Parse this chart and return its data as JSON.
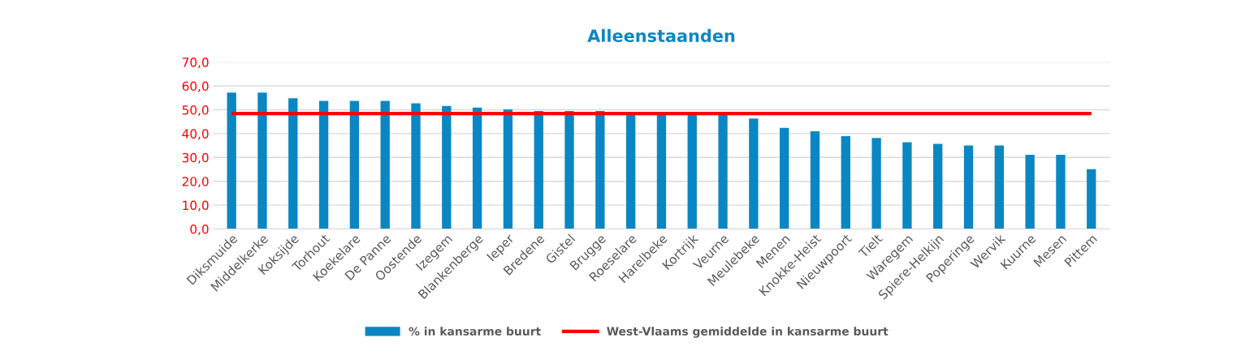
{
  "chart_data": {
    "type": "bar",
    "title": "Alleenstaanden",
    "categories": [
      "Diksmuide",
      "Middelkerke",
      "Koksijde",
      "Torhout",
      "Koekelare",
      "De Panne",
      "Oostende",
      "Izegem",
      "Blankenberge",
      "Ieper",
      "Bredene",
      "Gistel",
      "Brugge",
      "Roeselare",
      "Harelbeke",
      "Kortrijk",
      "Veurne",
      "Meulebeke",
      "Menen",
      "Knokke-Heist",
      "Nieuwpoort",
      "Tielt",
      "Waregem",
      "Spiere-Helkijn",
      "Poperinge",
      "Wervik",
      "Kuurne",
      "Mesen",
      "Pittem"
    ],
    "series": [
      {
        "name": "% in kansarme buurt",
        "color": "#0a87c3",
        "values": [
          57.2,
          57.2,
          54.8,
          53.7,
          53.7,
          53.7,
          52.7,
          51.6,
          50.9,
          50.2,
          49.5,
          49.5,
          49.5,
          48.4,
          48.4,
          48.4,
          48.4,
          46.3,
          42.4,
          41.0,
          38.9,
          38.2,
          36.4,
          35.7,
          35.0,
          35.0,
          31.1,
          31.1,
          25.1
        ]
      }
    ],
    "ref_lines": [
      {
        "axis": "y",
        "value": 48.4,
        "label": "West-Vlaams gemiddelde in kansarme buurt",
        "color": "#ff0000"
      }
    ],
    "ylim": [
      0,
      70
    ],
    "yticks": [
      {
        "value": 0,
        "label": "0,0"
      },
      {
        "value": 10,
        "label": "10,0"
      },
      {
        "value": 20,
        "label": "20,0"
      },
      {
        "value": 30,
        "label": "30,0"
      },
      {
        "value": 40,
        "label": "40,0"
      },
      {
        "value": 50,
        "label": "50,0"
      },
      {
        "value": 60,
        "label": "60,0"
      },
      {
        "value": 70,
        "label": "70,0"
      }
    ],
    "grid": "y",
    "legend": "bottom"
  }
}
